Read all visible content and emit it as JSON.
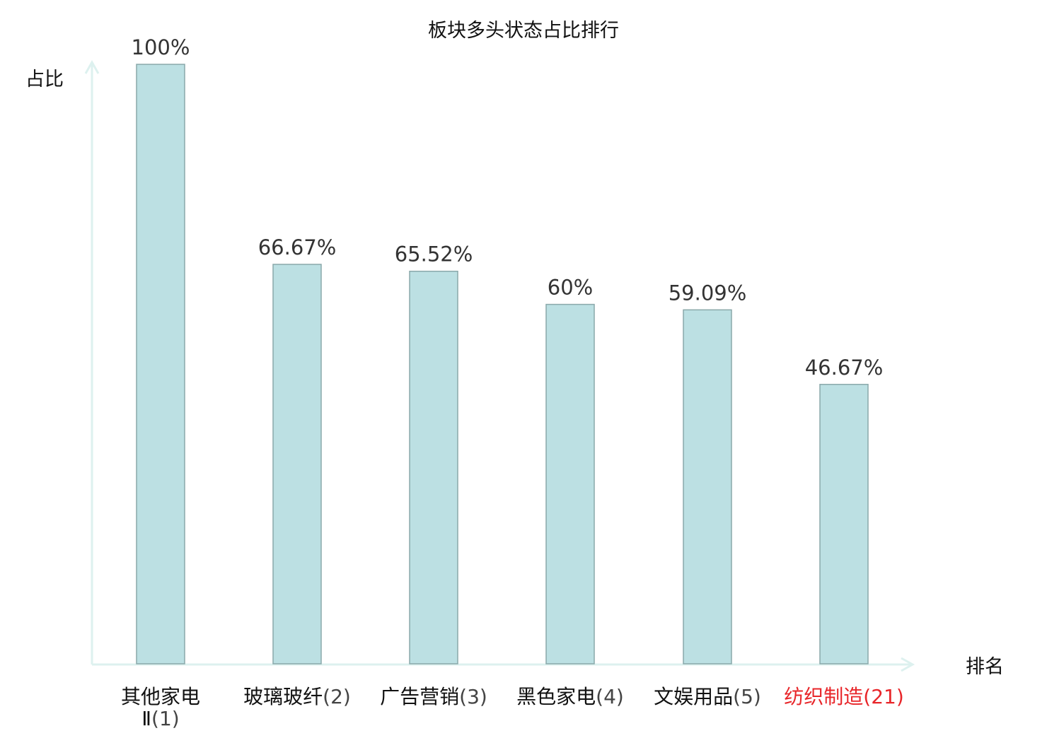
{
  "chart_data": {
    "type": "bar",
    "title": "板块多头状态占比排行",
    "ylabel": "占比",
    "xlabel": "排名",
    "ylim": [
      0,
      100
    ],
    "grid": false,
    "categories": [
      {
        "name": "其他家电Ⅱ",
        "rank": "(1)"
      },
      {
        "name": "玻璃玻纤",
        "rank": "(2)"
      },
      {
        "name": "广告营销",
        "rank": "(3)"
      },
      {
        "name": "黑色家电",
        "rank": "(4)"
      },
      {
        "name": "文娱用品",
        "rank": "(5)"
      },
      {
        "name": "纺织制造",
        "rank": "(21)",
        "highlight": true
      }
    ],
    "values": [
      100,
      66.67,
      65.52,
      60,
      59.09,
      46.67
    ],
    "labels": [
      "100%",
      "66.67%",
      "65.52%",
      "60%",
      "59.09%",
      "46.67%"
    ],
    "colors": {
      "bar_fill": "#bce0e3",
      "bar_stroke": "#8aa8aa",
      "axis": "#ddf1ef",
      "highlight": "#e8262a",
      "text": "#333333"
    }
  }
}
